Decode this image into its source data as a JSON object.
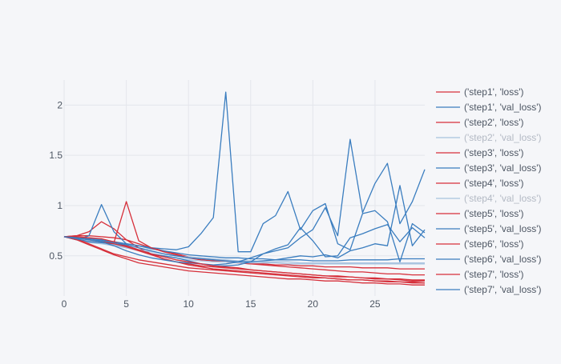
{
  "chart_data": {
    "type": "line",
    "title": "",
    "xlabel": "",
    "ylabel": "",
    "xlim": [
      0,
      29
    ],
    "ylim": [
      0.1,
      2.25
    ],
    "x_ticks": [
      0,
      5,
      10,
      15,
      20,
      25
    ],
    "y_ticks": [
      0.5,
      1,
      1.5,
      2
    ],
    "y_tick_labels": [
      "0.5",
      "1",
      "1.5",
      "2"
    ],
    "grid": true,
    "legend_position": "right",
    "colors": {
      "loss": "#d62f3a",
      "val_loss": "#3a7dbf",
      "dimmed_val_loss": "#a8c2df"
    },
    "series": [
      {
        "name": "('step1', 'loss')",
        "color": "#d62f3a",
        "values": [
          0.69,
          0.7,
          0.7,
          0.69,
          0.68,
          0.66,
          0.62,
          0.58,
          0.55,
          0.52,
          0.49,
          0.47,
          0.46,
          0.45,
          0.43,
          0.42,
          0.41,
          0.4,
          0.39,
          0.38,
          0.37,
          0.36,
          0.35,
          0.34,
          0.34,
          0.33,
          0.32,
          0.32,
          0.31,
          0.31
        ]
      },
      {
        "name": "('step1', 'val_loss')",
        "color": "#3a7dbf",
        "values": [
          0.69,
          0.68,
          0.67,
          0.66,
          0.64,
          0.62,
          0.6,
          0.57,
          0.55,
          0.53,
          0.51,
          0.5,
          0.49,
          0.48,
          0.48,
          0.47,
          0.47,
          0.46,
          0.46,
          0.46,
          0.45,
          0.45,
          0.45,
          0.46,
          0.46,
          0.46,
          0.46,
          0.47,
          0.47,
          0.47
        ]
      },
      {
        "name": "('step2', 'loss')",
        "color": "#d62f3a",
        "values": [
          0.69,
          0.7,
          0.74,
          0.84,
          0.77,
          0.66,
          0.58,
          0.52,
          0.47,
          0.44,
          0.42,
          0.4,
          0.39,
          0.38,
          0.37,
          0.36,
          0.35,
          0.34,
          0.33,
          0.32,
          0.31,
          0.3,
          0.29,
          0.29,
          0.28,
          0.28,
          0.27,
          0.27,
          0.26,
          0.26
        ]
      },
      {
        "name": "('step2', 'val_loss')",
        "color": "#a8c2df",
        "dimmed": true,
        "values": [
          0.69,
          0.66,
          0.63,
          0.62,
          0.6,
          0.58,
          0.56,
          0.54,
          0.52,
          0.5,
          0.49,
          0.48,
          0.47,
          0.46,
          0.45,
          0.45,
          0.44,
          0.44,
          0.44,
          0.43,
          0.43,
          0.43,
          0.43,
          0.43,
          0.43,
          0.43,
          0.43,
          0.43,
          0.43,
          0.43
        ]
      },
      {
        "name": "('step3', 'loss')",
        "color": "#d62f3a",
        "values": [
          0.69,
          0.67,
          0.62,
          0.57,
          0.52,
          0.49,
          0.46,
          0.44,
          0.42,
          0.4,
          0.38,
          0.37,
          0.36,
          0.35,
          0.34,
          0.33,
          0.32,
          0.31,
          0.3,
          0.29,
          0.28,
          0.28,
          0.27,
          0.26,
          0.26,
          0.25,
          0.25,
          0.24,
          0.24,
          0.23
        ]
      },
      {
        "name": "('step3', 'val_loss')",
        "color": "#3a7dbf",
        "values": [
          0.69,
          0.66,
          0.7,
          1.01,
          0.74,
          0.62,
          0.6,
          0.58,
          0.57,
          0.56,
          0.59,
          0.72,
          0.88,
          2.13,
          0.54,
          0.54,
          0.82,
          0.9,
          1.14,
          0.76,
          0.95,
          1.02,
          0.62,
          0.56,
          0.92,
          0.95,
          0.84,
          0.44,
          0.82,
          0.73
        ]
      },
      {
        "name": "('step4', 'loss')",
        "color": "#d62f3a",
        "values": [
          0.69,
          0.68,
          0.66,
          0.64,
          0.63,
          1.04,
          0.65,
          0.58,
          0.54,
          0.51,
          0.48,
          0.46,
          0.45,
          0.44,
          0.43,
          0.42,
          0.42,
          0.41,
          0.41,
          0.4,
          0.4,
          0.39,
          0.39,
          0.39,
          0.38,
          0.38,
          0.38,
          0.37,
          0.37,
          0.37
        ]
      },
      {
        "name": "('step4', 'val_loss')",
        "color": "#a8c2df",
        "dimmed": true,
        "values": [
          0.69,
          0.67,
          0.65,
          0.63,
          0.61,
          0.58,
          0.55,
          0.52,
          0.5,
          0.48,
          0.46,
          0.45,
          0.44,
          0.44,
          0.43,
          0.43,
          0.43,
          0.43,
          0.42,
          0.42,
          0.42,
          0.42,
          0.42,
          0.42,
          0.42,
          0.42,
          0.42,
          0.42,
          0.42,
          0.42
        ]
      },
      {
        "name": "('step5', 'loss')",
        "color": "#d62f3a",
        "values": [
          0.69,
          0.66,
          0.61,
          0.56,
          0.51,
          0.47,
          0.43,
          0.41,
          0.39,
          0.37,
          0.35,
          0.34,
          0.33,
          0.32,
          0.31,
          0.3,
          0.29,
          0.28,
          0.27,
          0.27,
          0.26,
          0.25,
          0.25,
          0.24,
          0.23,
          0.23,
          0.22,
          0.22,
          0.21,
          0.21
        ]
      },
      {
        "name": "('step5', 'val_loss')",
        "color": "#3a7dbf",
        "values": [
          0.69,
          0.67,
          0.64,
          0.63,
          0.62,
          0.6,
          0.56,
          0.52,
          0.5,
          0.48,
          0.45,
          0.42,
          0.4,
          0.4,
          0.41,
          0.44,
          0.52,
          0.57,
          0.61,
          0.78,
          0.65,
          0.49,
          0.5,
          0.68,
          0.72,
          0.77,
          0.81,
          0.64,
          0.78,
          0.68
        ]
      },
      {
        "name": "('step6', 'loss')",
        "color": "#d62f3a",
        "values": [
          0.69,
          0.68,
          0.66,
          0.64,
          0.62,
          0.59,
          0.55,
          0.51,
          0.47,
          0.44,
          0.41,
          0.39,
          0.37,
          0.36,
          0.35,
          0.34,
          0.33,
          0.32,
          0.31,
          0.3,
          0.29,
          0.28,
          0.27,
          0.26,
          0.26,
          0.25,
          0.24,
          0.24,
          0.23,
          0.23
        ]
      },
      {
        "name": "('step6', 'val_loss')",
        "color": "#3a7dbf",
        "values": [
          0.69,
          0.68,
          0.66,
          0.64,
          0.6,
          0.55,
          0.51,
          0.48,
          0.46,
          0.44,
          0.43,
          0.42,
          0.41,
          0.42,
          0.44,
          0.48,
          0.52,
          0.55,
          0.58,
          0.68,
          0.76,
          0.98,
          0.7,
          1.66,
          0.93,
          1.22,
          1.42,
          0.82,
          1.04,
          1.36
        ]
      },
      {
        "name": "('step7', 'loss')",
        "color": "#d62f3a",
        "values": [
          0.69,
          0.69,
          0.68,
          0.67,
          0.64,
          0.6,
          0.56,
          0.52,
          0.49,
          0.46,
          0.44,
          0.42,
          0.4,
          0.39,
          0.38,
          0.36,
          0.35,
          0.34,
          0.33,
          0.32,
          0.31,
          0.3,
          0.3,
          0.29,
          0.28,
          0.27,
          0.27,
          0.26,
          0.25,
          0.25
        ]
      },
      {
        "name": "('step7', 'val_loss')",
        "color": "#3a7dbf",
        "values": [
          0.69,
          0.68,
          0.66,
          0.65,
          0.63,
          0.61,
          0.58,
          0.55,
          0.52,
          0.5,
          0.48,
          0.47,
          0.46,
          0.45,
          0.44,
          0.44,
          0.45,
          0.46,
          0.48,
          0.5,
          0.49,
          0.51,
          0.48,
          0.55,
          0.58,
          0.62,
          0.6,
          1.2,
          0.6,
          0.76
        ]
      }
    ]
  }
}
